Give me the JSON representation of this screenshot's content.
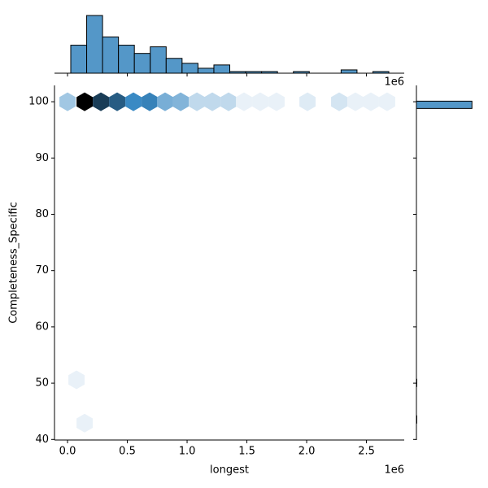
{
  "chart_data": [
    {
      "type": "hexbin",
      "xlabel": "longest",
      "ylabel": "Completeness_Specific",
      "x_offset_label": "1e6",
      "xlim": [
        -109000,
        2816000
      ],
      "ylim": [
        39.9,
        102.9
      ],
      "xticks": [
        {
          "value": 0,
          "label": "0.0"
        },
        {
          "value": 500000,
          "label": "0.5"
        },
        {
          "value": 1000000,
          "label": "1.0"
        },
        {
          "value": 1500000,
          "label": "1.5"
        },
        {
          "value": 2000000,
          "label": "2.0"
        },
        {
          "value": 2500000,
          "label": "2.5"
        }
      ],
      "yticks": [
        40,
        50,
        60,
        70,
        80,
        90,
        100
      ],
      "x": [
        0,
        143000,
        279000,
        415000,
        551000,
        687000,
        816000,
        946000,
        1082000,
        1211000,
        1347000,
        1476000,
        1612000,
        1748000,
        2007000,
        2272000,
        2408000,
        2537000,
        2673000,
        75000,
        143000
      ],
      "y": [
        100,
        100,
        100,
        100,
        100,
        100,
        100,
        100,
        100,
        100,
        100,
        100,
        100,
        100,
        100,
        100,
        100,
        100,
        100,
        50.6,
        42.9
      ],
      "values": [
        8,
        36,
        28,
        24,
        18,
        19,
        12,
        11,
        5,
        5,
        5,
        1,
        1,
        1,
        2,
        3,
        1,
        1,
        1,
        1,
        1
      ],
      "cmap": [
        "#f3f7fb",
        "#3a8ac4",
        "#000000"
      ]
    },
    {
      "type": "histogram",
      "orientation": "vertical",
      "x_offset_label": "1e6",
      "color": "#5497c8",
      "edgecolor": "#000000",
      "bins": [
        27000,
        160000,
        293000,
        426000,
        559000,
        692000,
        825000,
        958000,
        1091000,
        1224000,
        1357000,
        1490000,
        1623000,
        1756000,
        1889000,
        2022000,
        2155000,
        2288000,
        2421000,
        2554000,
        2687000
      ],
      "values": [
        17,
        35,
        22,
        17,
        12,
        16,
        9,
        6,
        3,
        5,
        1,
        1,
        1,
        0,
        1,
        0,
        0,
        2,
        0,
        1
      ],
      "ylim": [
        0,
        37.5
      ]
    },
    {
      "type": "histogram",
      "orientation": "horizontal",
      "color": "#5497c8",
      "edgecolor": "#000000",
      "bins": [
        42.9,
        44.2,
        45.5,
        46.8,
        48.1,
        49.4,
        50.7,
        52.0,
        53.3,
        54.6,
        55.9,
        57.2,
        58.5,
        59.8,
        61.1,
        62.4,
        63.7,
        65.0,
        66.3,
        67.6,
        68.9,
        70.2,
        71.5,
        72.8,
        74.1,
        75.4,
        76.7,
        78.0,
        79.3,
        80.6,
        81.9,
        83.2,
        84.5,
        85.8,
        87.1,
        88.4,
        89.7,
        91.0,
        92.3,
        93.6,
        94.9,
        96.2,
        97.5,
        98.8,
        100.1
      ],
      "values": [
        1,
        0,
        0,
        0,
        0,
        1,
        0,
        0,
        0,
        0,
        0,
        0,
        0,
        0,
        0,
        0,
        0,
        0,
        0,
        0,
        0,
        0,
        0,
        0,
        0,
        0,
        0,
        0,
        0,
        0,
        0,
        0,
        0,
        0,
        0,
        0,
        0,
        0,
        0,
        0,
        0,
        0,
        0,
        147
      ],
      "xlim": [
        0,
        168
      ]
    }
  ]
}
